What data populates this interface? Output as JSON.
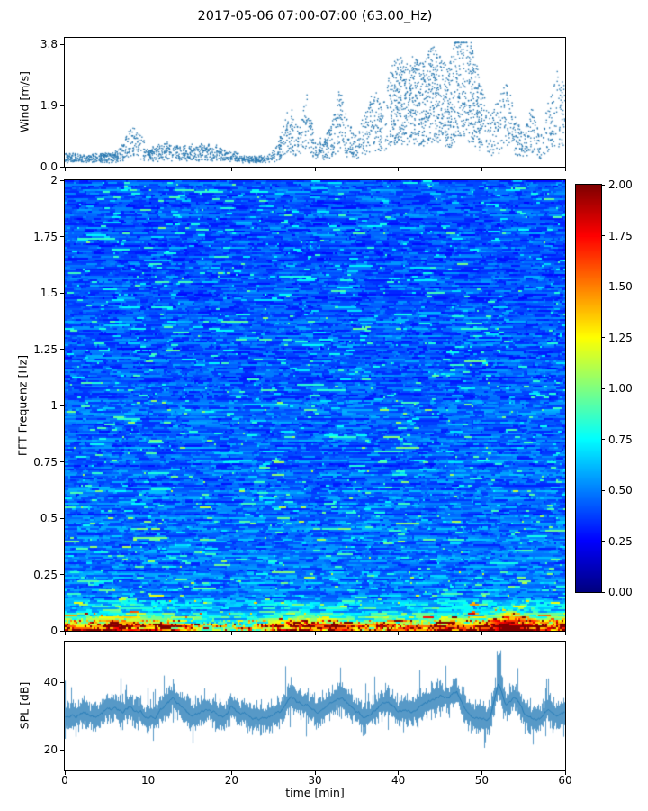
{
  "title": "2017-05-06 07:00-07:00 (63.00_Hz)",
  "colors": {
    "line_blue": "#1f77b4",
    "scatter_blue": "#2878b0",
    "axis_black": "#000000"
  },
  "axes": {
    "x": {
      "label": "time [min]",
      "range": [
        0,
        60
      ],
      "ticks": [
        "0",
        "10",
        "20",
        "30",
        "40",
        "50",
        "60"
      ]
    },
    "wind": {
      "label": "Wind [m/s]",
      "range": [
        0,
        4
      ],
      "ticks": [
        "0.0",
        "1.9",
        "3.8"
      ]
    },
    "fft": {
      "label": "FFT Frequenz [Hz]",
      "range": [
        0,
        2
      ],
      "ticks": [
        "0",
        "0.25",
        "0.5",
        "0.75",
        "1",
        "1.25",
        "1.5",
        "1.75",
        "2"
      ]
    },
    "spl": {
      "label": "SPL [dB]",
      "range": [
        14,
        52
      ],
      "ticks": [
        "20",
        "40"
      ]
    },
    "colorbar": {
      "range": [
        0,
        2
      ],
      "ticks": [
        "0.00",
        "0.25",
        "0.50",
        "0.75",
        "1.00",
        "1.25",
        "1.50",
        "1.75",
        "2.00"
      ]
    }
  },
  "chart_data": [
    {
      "type": "scatter",
      "name": "wind-speed",
      "ylabel": "Wind [m/s]",
      "x_range": [
        0,
        60
      ],
      "y_range": [
        0,
        4
      ],
      "marker_color": "#2878b0",
      "envelope": {
        "t": [
          0,
          2,
          4,
          6,
          7,
          8,
          9,
          10,
          12,
          13,
          14,
          16,
          18,
          20,
          22,
          24,
          25,
          26,
          27,
          28,
          29,
          30,
          31,
          32,
          33,
          34,
          35,
          36,
          37,
          38,
          39,
          40,
          41,
          42,
          43,
          44,
          45,
          46,
          47,
          48,
          49,
          50,
          51,
          52,
          53,
          54,
          55,
          56,
          57,
          58,
          59,
          60
        ],
        "v": [
          0.25,
          0.2,
          0.25,
          0.3,
          0.5,
          1.0,
          0.8,
          0.35,
          0.55,
          0.5,
          0.4,
          0.5,
          0.45,
          0.3,
          0.15,
          0.2,
          0.3,
          0.8,
          1.6,
          0.9,
          1.8,
          0.7,
          0.6,
          1.0,
          2.0,
          1.1,
          0.7,
          1.3,
          2.0,
          1.6,
          2.4,
          2.9,
          2.6,
          2.8,
          2.6,
          3.1,
          2.8,
          2.4,
          3.7,
          3.4,
          3.0,
          2.0,
          1.3,
          1.6,
          2.3,
          1.2,
          0.8,
          1.5,
          0.6,
          1.6,
          2.4,
          2.0
        ]
      }
    },
    {
      "type": "heatmap",
      "name": "fft-spectrogram",
      "ylabel": "FFT Frequenz [Hz]",
      "x_range": [
        0,
        60
      ],
      "y_range": [
        0,
        2
      ],
      "clim": [
        0,
        2
      ],
      "colormap": "jet",
      "freq_profile": {
        "f": [
          0,
          0.02,
          0.04,
          0.07,
          0.1,
          0.15,
          0.25,
          0.5,
          1.0,
          1.5,
          2.0
        ],
        "v": [
          1.6,
          1.35,
          1.05,
          0.8,
          0.62,
          0.52,
          0.48,
          0.46,
          0.44,
          0.43,
          0.42
        ]
      },
      "time_profile_lowfreq": {
        "t": [
          0,
          3,
          6,
          8,
          10,
          12,
          15,
          18,
          22,
          26,
          28,
          30,
          33,
          36,
          40,
          44,
          48,
          51,
          53,
          55,
          57,
          59,
          60
        ],
        "v": [
          1.25,
          1.2,
          1.3,
          1.45,
          1.2,
          1.15,
          0.85,
          0.75,
          0.7,
          1.15,
          1.35,
          1.25,
          1.1,
          0.9,
          1.05,
          1.15,
          1.2,
          1.3,
          1.9,
          1.8,
          1.2,
          1.35,
          1.4
        ]
      }
    },
    {
      "type": "line",
      "name": "spl-timeseries",
      "ylabel": "SPL [dB]",
      "x_range": [
        0,
        60
      ],
      "y_range": [
        14,
        52
      ],
      "color": "#1f77b4",
      "mean": {
        "t": [
          0,
          2,
          4,
          5,
          7,
          8,
          10,
          12,
          13,
          15,
          17,
          19,
          20,
          22,
          24,
          26,
          27,
          28,
          30,
          31,
          33,
          34,
          36,
          37,
          38,
          40,
          42,
          44,
          45,
          46,
          47,
          48,
          50,
          51,
          52,
          53,
          54,
          55,
          56,
          57,
          58,
          59,
          60
        ],
        "v": [
          30,
          32,
          31,
          33,
          32,
          34,
          30,
          33,
          34,
          30,
          30,
          29,
          32,
          30,
          30,
          31,
          35,
          33,
          31,
          30,
          35,
          33,
          31,
          33,
          35,
          32,
          31,
          33,
          35,
          34,
          37,
          33,
          30,
          31,
          40,
          35,
          37,
          33,
          30,
          31,
          34,
          32,
          33
        ]
      },
      "spike": {
        "t": 52.1,
        "v": 50
      }
    }
  ]
}
